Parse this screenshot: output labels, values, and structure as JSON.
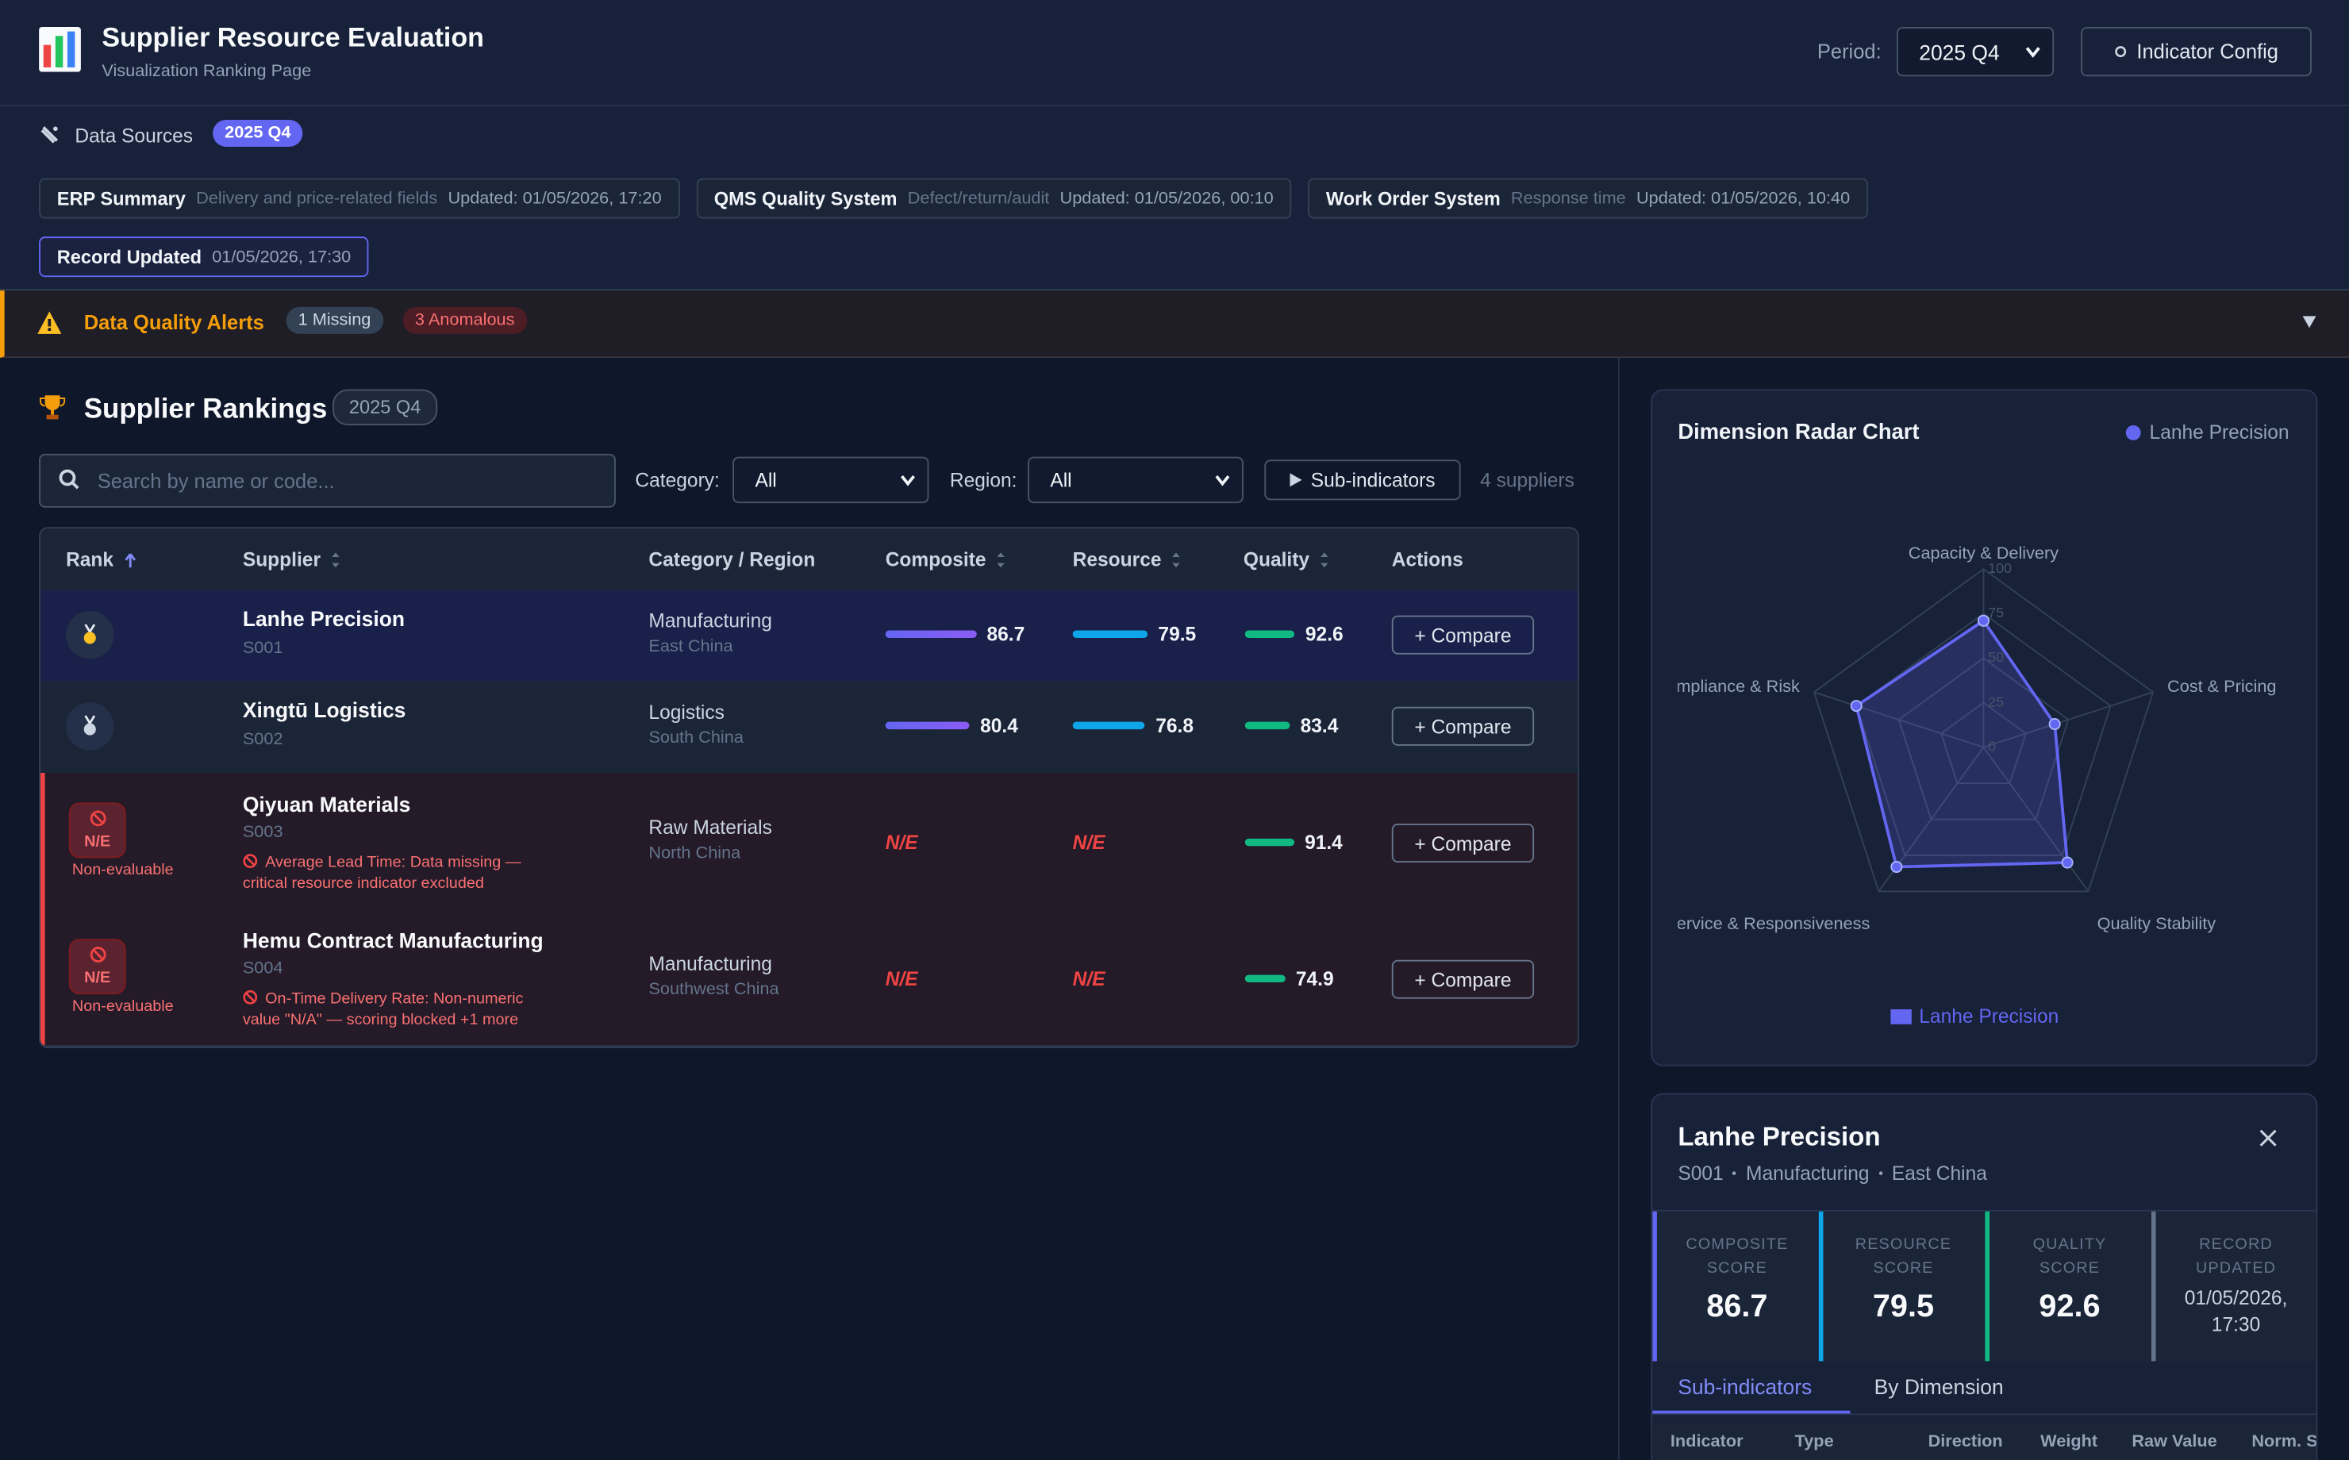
{
  "header": {
    "title": "Supplier Resource Evaluation",
    "subtitle": "Visualization Ranking Page",
    "period_label": "Period:",
    "period": "2025 Q4",
    "config_button": "Indicator Config"
  },
  "data_sources": {
    "label": "Data Sources",
    "period": "2025 Q4",
    "items": [
      {
        "name": "ERP Summary",
        "desc": "Delivery and price-related fields",
        "updated": "Updated: 01/05/2026, 17:20"
      },
      {
        "name": "QMS Quality System",
        "desc": "Defect/return/audit",
        "updated": "Updated: 01/05/2026, 00:10"
      },
      {
        "name": "Work Order System",
        "desc": "Response time",
        "updated": "Updated: 01/05/2026, 10:40"
      }
    ],
    "record": {
      "name": "Record Updated",
      "updated": "01/05/2026, 17:30"
    }
  },
  "alerts": {
    "title": "Data Quality Alerts",
    "missing": "1 Missing",
    "anomalous": "3 Anomalous"
  },
  "rankings": {
    "title": "Supplier Rankings",
    "period": "2025 Q4",
    "search_placeholder": "Search by name or code...",
    "category_label": "Category:",
    "category": "All",
    "region_label": "Region:",
    "region": "All",
    "sub_button": "Sub-indicators",
    "count": "4 suppliers",
    "columns": [
      "Rank",
      "Supplier",
      "Category / Region",
      "Composite",
      "Resource",
      "Quality",
      "Actions"
    ],
    "rows": [
      {
        "supplier": "Lanhe Precision",
        "code": "S001",
        "category": "Manufacturing",
        "region": "East China",
        "composite": 86.7,
        "resource": 79.5,
        "quality": 92.6,
        "action": "+ Compare"
      },
      {
        "supplier": "Xingtū Logistics",
        "code": "S002",
        "category": "Logistics",
        "region": "South China",
        "composite": 80.4,
        "resource": 76.8,
        "quality": 83.4,
        "action": "+ Compare"
      },
      {
        "badge": "N/E",
        "status": "Non-evaluable",
        "supplier": "Qiyuan Materials",
        "code": "S003",
        "issue": "Average Lead Time: Data missing — critical resource indicator excluded",
        "category": "Raw Materials",
        "region": "North China",
        "composite": "N/E",
        "resource": "N/E",
        "quality": 91.4,
        "action": "+ Compare"
      },
      {
        "badge": "N/E",
        "status": "Non-evaluable",
        "supplier": "Hemu Contract Manufacturing",
        "code": "S004",
        "issue": "On-Time Delivery Rate: Non-numeric value \"N/A\" — scoring blocked +1 more",
        "category": "Manufacturing",
        "region": "Southwest China",
        "composite": "N/E",
        "resource": "N/E",
        "quality": 74.9,
        "action": "+ Compare"
      }
    ]
  },
  "chart_data": {
    "type": "radar",
    "title": "Dimension Radar Chart",
    "categories": [
      "Capacity & Delivery",
      "Cost & Pricing",
      "Quality Stability",
      "Service & Responsiveness",
      "Compliance & Risk"
    ],
    "rlim": [
      0,
      100
    ],
    "rticks": [
      0,
      25,
      50,
      75,
      100
    ],
    "grid": true,
    "legend": "top-right",
    "series": [
      {
        "name": "Lanhe Precision",
        "color": "#6366f1",
        "values": [
          71,
          42,
          80,
          83,
          75
        ]
      }
    ]
  },
  "detail": {
    "name": "Lanhe Precision",
    "code": "S001",
    "category": "Manufacturing",
    "region": "East China",
    "cards": [
      {
        "label": "COMPOSITE SCORE",
        "value": 86.7
      },
      {
        "label": "RESOURCE SCORE",
        "value": 79.5
      },
      {
        "label": "QUALITY SCORE",
        "value": 92.6
      },
      {
        "label": "RECORD UPDATED",
        "value": "01/05/2026, 17:30"
      }
    ],
    "tabs": [
      "Sub-indicators",
      "By Dimension"
    ],
    "columns": [
      "Indicator",
      "Type",
      "Direction",
      "Weight",
      "Raw Value",
      "Norm. Score"
    ]
  }
}
